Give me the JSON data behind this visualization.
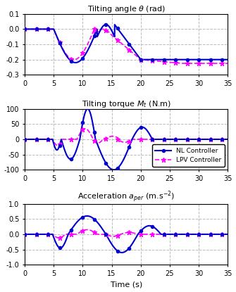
{
  "title1": "Tilting angle $\\theta$ (rad)",
  "title2": "Tilting torque $M_t$ (N.m)",
  "title3": "Acceleration $a_{per}$ (m.s$^{-2}$)",
  "xlabel": "Time (s)",
  "xlim": [
    0,
    35
  ],
  "xticks": [
    0,
    5,
    10,
    15,
    20,
    25,
    30,
    35
  ],
  "ylim1": [
    -0.3,
    0.1
  ],
  "yticks1": [
    -0.3,
    -0.2,
    -0.1,
    0.0,
    0.1
  ],
  "ylim2": [
    -100,
    100
  ],
  "yticks2": [
    -100,
    -50,
    0,
    50,
    100
  ],
  "ylim3": [
    -1,
    1
  ],
  "yticks3": [
    -1.0,
    -0.5,
    0.0,
    0.5,
    1.0
  ],
  "nl_color": "#0000CD",
  "lpv_color": "#FF00FF",
  "grid_color": "#BBBBBB",
  "legend_nl": "NL Controller",
  "legend_lpv": "LPV Controller"
}
